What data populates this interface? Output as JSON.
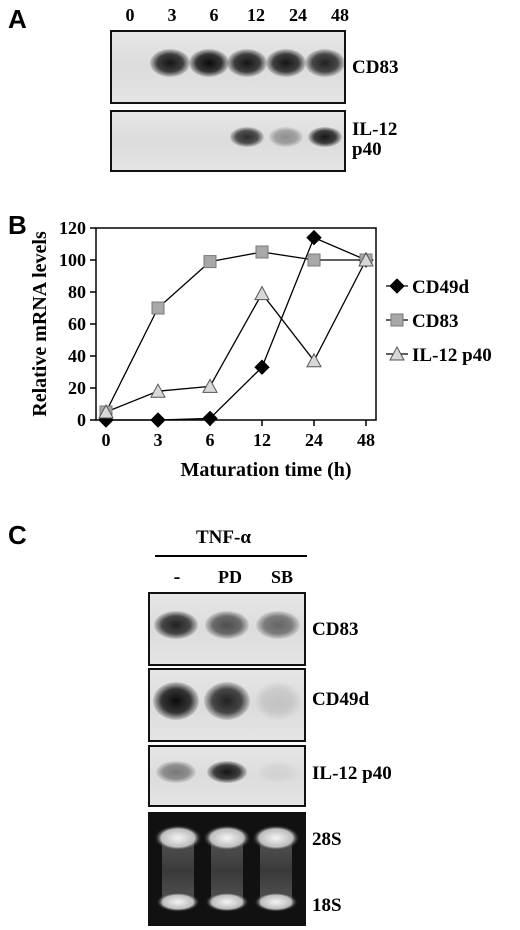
{
  "panel_a": {
    "letter": "A",
    "lanes": [
      "0",
      "3",
      "6",
      "12",
      "24",
      "48"
    ],
    "rows": [
      {
        "label": "CD83",
        "band_intensity": [
          0,
          0.9,
          0.95,
          0.9,
          0.9,
          0.85
        ]
      },
      {
        "label_line1": "IL-12",
        "label_line2": "p40",
        "band_intensity": [
          0,
          0,
          0,
          0.8,
          0.35,
          0.9
        ]
      }
    ]
  },
  "panel_b": {
    "letter": "B",
    "chart_data": {
      "type": "line",
      "categories": [
        "0",
        "3",
        "6",
        "12",
        "24",
        "48"
      ],
      "ylabel": "Relative mRNA levels",
      "xlabel": "Maturation time (h)",
      "ylim": [
        0,
        120
      ],
      "yticks": [
        0,
        20,
        40,
        60,
        80,
        100,
        120
      ],
      "grid": false,
      "legend_placement": "right",
      "series": [
        {
          "name": "CD49d",
          "marker": "diamond",
          "color": "#000000",
          "values": [
            0,
            0,
            1,
            33,
            114,
            100
          ]
        },
        {
          "name": "CD83",
          "marker": "square",
          "color": "#a8a8a8",
          "values": [
            5,
            70,
            99,
            105,
            100,
            100
          ]
        },
        {
          "name": "IL-12 p40",
          "marker": "triangle",
          "color": "#d8d8d8",
          "values": [
            5,
            18,
            21,
            79,
            37,
            100
          ]
        }
      ]
    }
  },
  "panel_c": {
    "letter": "C",
    "treatment": "TNF-α",
    "lanes": [
      "-",
      "PD",
      "SB"
    ],
    "rows": [
      {
        "label": "CD83",
        "band_intensity": [
          0.85,
          0.65,
          0.55
        ]
      },
      {
        "label": "CD49d",
        "band_intensity": [
          0.95,
          0.85,
          0.12
        ]
      },
      {
        "label": "IL-12 p40",
        "band_intensity": [
          0.45,
          0.9,
          0.05
        ]
      }
    ],
    "rrna": {
      "label_28s": "28S",
      "label_18s": "18S"
    }
  }
}
